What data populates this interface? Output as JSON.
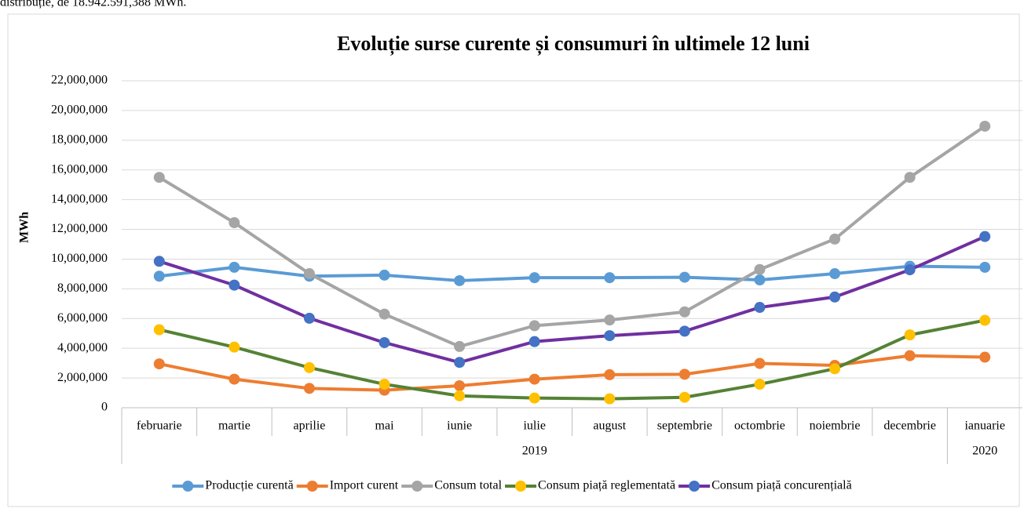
{
  "page_text_above": "distribuție, de 18.942.591,388 MWh.",
  "chart_data": {
    "type": "line",
    "title": "Evoluție surse curente și consumuri în ultimele 12 luni",
    "ylabel": "MWh",
    "categories": [
      "februarie",
      "martie",
      "aprilie",
      "mai",
      "iunie",
      "iulie",
      "august",
      "septembrie",
      "octombrie",
      "noiembrie",
      "decembrie",
      "ianuarie"
    ],
    "x_groups": [
      {
        "label": "2019",
        "count": 11
      },
      {
        "label": "2020",
        "count": 1
      }
    ],
    "ylim": [
      0,
      22000000
    ],
    "yticks": [
      0,
      {
        "value": 2000000,
        "label": "2,000,000"
      },
      {
        "value": 4000000,
        "label": "4,000,000"
      },
      {
        "value": 6000000,
        "label": "6,000,000"
      },
      {
        "value": 8000000,
        "label": "8,000,000"
      },
      {
        "value": 10000000,
        "label": "10,000,000"
      },
      {
        "value": 12000000,
        "label": "12,000,000"
      },
      {
        "value": 14000000,
        "label": "14,000,000"
      },
      {
        "value": 16000000,
        "label": "16,000,000"
      },
      {
        "value": 18000000,
        "label": "18,000,000"
      },
      {
        "value": 20000000,
        "label": "20,000,000"
      },
      {
        "value": 22000000,
        "label": "22,000,000"
      }
    ],
    "grid": true,
    "legend": "bottom",
    "series": [
      {
        "name": "Producție curentă",
        "color": "#5b9bd5",
        "marker_color": "#5b9bd5",
        "values": [
          8850000,
          9450000,
          8850000,
          8920000,
          8550000,
          8750000,
          8750000,
          8780000,
          8600000,
          9020000,
          9520000,
          9450000
        ]
      },
      {
        "name": "Import curent",
        "color": "#ed7d31",
        "marker_color": "#ed7d31",
        "values": [
          2950000,
          1920000,
          1300000,
          1180000,
          1480000,
          1920000,
          2220000,
          2250000,
          2980000,
          2850000,
          3500000,
          3400000
        ]
      },
      {
        "name": "Consum total",
        "color": "#a5a5a5",
        "marker_color": "#a5a5a5",
        "values": [
          15500000,
          12450000,
          9020000,
          6300000,
          4120000,
          5520000,
          5900000,
          6450000,
          9300000,
          11350000,
          15500000,
          18942591.388
        ]
      },
      {
        "name": "Consum piață reglementată",
        "color": "#548235",
        "marker_color": "#ffc000",
        "values": [
          5250000,
          4080000,
          2700000,
          1580000,
          800000,
          650000,
          600000,
          700000,
          1580000,
          2620000,
          4900000,
          5880000
        ]
      },
      {
        "name": "Consum piață concurențială",
        "color": "#7030a0",
        "marker_color": "#4472c4",
        "values": [
          9850000,
          8250000,
          6020000,
          4380000,
          3050000,
          4450000,
          4850000,
          5150000,
          6750000,
          7450000,
          9280000,
          11520000
        ]
      }
    ]
  }
}
